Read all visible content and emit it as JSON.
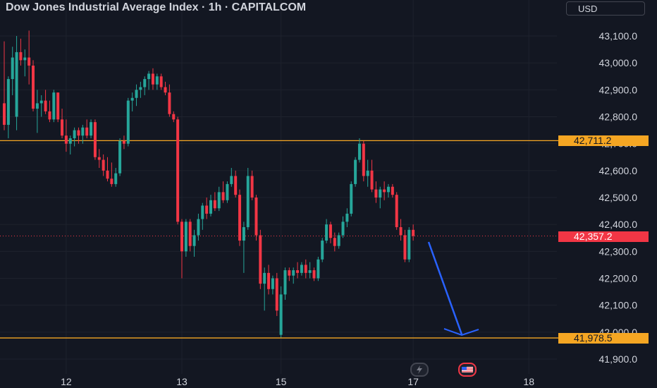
{
  "header": {
    "title": "Dow Jones Industrial Average Index · 1h · CAPITALCOM",
    "currency": "USD"
  },
  "price_tags": {
    "upper_level": "42,711.2",
    "last_price": "42,357.2",
    "lower_level": "41,978.5"
  },
  "colors": {
    "background": "#131722",
    "bull": "#26a69a",
    "bear": "#f23645",
    "level_line": "#f5a623",
    "arrow": "#2962ff",
    "grid": "#1e222d",
    "axis_text": "#d1d4dc"
  },
  "icons": [
    "lightning-event-icon",
    "us-flag-event-icon"
  ],
  "chart_data": {
    "type": "candlestick",
    "title": "Dow Jones Industrial Average Index · 1h · CAPITALCOM",
    "ylim": [
      41850,
      43170
    ],
    "y_ticks": [
      "43,100.0",
      "43,000.0",
      "42,900.0",
      "42,800.0",
      "42,700.0",
      "42,600.0",
      "42,500.0",
      "42,400.0",
      "42,300.0",
      "42,200.0",
      "42,100.0",
      "42,000.0",
      "41,900.0"
    ],
    "y_tick_values": [
      43100,
      43000,
      42900,
      42800,
      42700,
      42600,
      42500,
      42400,
      42300,
      42200,
      42100,
      42000,
      41900
    ],
    "x_ticks": [
      {
        "label": "12",
        "bar": 15
      },
      {
        "label": "13",
        "bar": 43
      },
      {
        "label": "15",
        "bar": 67
      },
      {
        "label": "17",
        "bar": 99
      },
      {
        "label": "18",
        "bar": 127
      }
    ],
    "grid": true,
    "horizontal_levels": [
      42711.2,
      41978.5
    ],
    "last_price": 42357.2,
    "candles": [
      [
        42850,
        43080,
        42750,
        42770
      ],
      [
        42770,
        42950,
        42720,
        42940
      ],
      [
        42940,
        43060,
        42880,
        43020
      ],
      [
        42800,
        43100,
        42750,
        43040
      ],
      [
        43040,
        43090,
        42990,
        43010
      ],
      [
        43010,
        43050,
        42950,
        43020
      ],
      [
        43020,
        43120,
        42920,
        42990
      ],
      [
        42990,
        43010,
        42820,
        42830
      ],
      [
        42830,
        42900,
        42740,
        42850
      ],
      [
        42850,
        42880,
        42800,
        42860
      ],
      [
        42860,
        42900,
        42810,
        42820
      ],
      [
        42820,
        42860,
        42780,
        42790
      ],
      [
        42790,
        42900,
        42780,
        42890
      ],
      [
        42890,
        42890,
        42780,
        42790
      ],
      [
        42790,
        42830,
        42720,
        42730
      ],
      [
        42730,
        42790,
        42670,
        42700
      ],
      [
        42700,
        42730,
        42660,
        42720
      ],
      [
        42720,
        42760,
        42690,
        42750
      ],
      [
        42750,
        42760,
        42700,
        42730
      ],
      [
        42730,
        42770,
        42700,
        42760
      ],
      [
        42760,
        42790,
        42720,
        42730
      ],
      [
        42730,
        42790,
        42720,
        42780
      ],
      [
        42780,
        42790,
        42640,
        42650
      ],
      [
        42650,
        42680,
        42610,
        42640
      ],
      [
        42640,
        42660,
        42580,
        42600
      ],
      [
        42600,
        42650,
        42560,
        42570
      ],
      [
        42570,
        42630,
        42540,
        42550
      ],
      [
        42550,
        42610,
        42540,
        42590
      ],
      [
        42590,
        42720,
        42580,
        42710
      ],
      [
        42710,
        42730,
        42680,
        42700
      ],
      [
        42700,
        42870,
        42690,
        42860
      ],
      [
        42860,
        42890,
        42820,
        42870
      ],
      [
        42870,
        42920,
        42840,
        42900
      ],
      [
        42900,
        42930,
        42870,
        42910
      ],
      [
        42910,
        42950,
        42880,
        42940
      ],
      [
        42940,
        42970,
        42900,
        42960
      ],
      [
        42960,
        42980,
        42900,
        42920
      ],
      [
        42920,
        42960,
        42900,
        42950
      ],
      [
        42950,
        42960,
        42900,
        42910
      ],
      [
        42910,
        42930,
        42880,
        42890
      ],
      [
        42890,
        42920,
        42800,
        42810
      ],
      [
        42810,
        42820,
        42780,
        42790
      ],
      [
        42790,
        42800,
        42400,
        42410
      ],
      [
        42410,
        42420,
        42200,
        42300
      ],
      [
        42300,
        42420,
        42280,
        42410
      ],
      [
        42410,
        42420,
        42300,
        42320
      ],
      [
        42320,
        42380,
        42280,
        42360
      ],
      [
        42360,
        42440,
        42340,
        42420
      ],
      [
        42420,
        42480,
        42380,
        42470
      ],
      [
        42470,
        42500,
        42420,
        42440
      ],
      [
        42440,
        42510,
        42430,
        42490
      ],
      [
        42490,
        42520,
        42450,
        42460
      ],
      [
        42460,
        42540,
        42450,
        42520
      ],
      [
        42520,
        42560,
        42480,
        42490
      ],
      [
        42490,
        42560,
        42480,
        42550
      ],
      [
        42550,
        42610,
        42540,
        42580
      ],
      [
        42580,
        42600,
        42500,
        42510
      ],
      [
        42510,
        42530,
        42320,
        42340
      ],
      [
        42340,
        42410,
        42220,
        42390
      ],
      [
        42390,
        42610,
        42380,
        42580
      ],
      [
        42580,
        42600,
        42490,
        42500
      ],
      [
        42500,
        42510,
        42340,
        42360
      ],
      [
        42360,
        42380,
        42160,
        42180
      ],
      [
        42180,
        42240,
        42080,
        42220
      ],
      [
        42220,
        42250,
        42140,
        42160
      ],
      [
        42160,
        42210,
        42140,
        42200
      ],
      [
        42200,
        42220,
        42060,
        42080
      ],
      [
        41990,
        42170,
        41980,
        42140
      ],
      [
        42140,
        42240,
        42120,
        42230
      ],
      [
        42230,
        42240,
        42190,
        42210
      ],
      [
        42210,
        42240,
        42180,
        42230
      ],
      [
        42230,
        42260,
        42200,
        42220
      ],
      [
        42220,
        42260,
        42210,
        42250
      ],
      [
        42250,
        42270,
        42200,
        42220
      ],
      [
        42220,
        42260,
        42200,
        42230
      ],
      [
        42230,
        42240,
        42190,
        42200
      ],
      [
        42200,
        42280,
        42190,
        42270
      ],
      [
        42270,
        42350,
        42260,
        42340
      ],
      [
        42340,
        42420,
        42330,
        42400
      ],
      [
        42400,
        42410,
        42330,
        42350
      ],
      [
        42350,
        42370,
        42300,
        42320
      ],
      [
        42320,
        42370,
        42310,
        42360
      ],
      [
        42360,
        42430,
        42350,
        42410
      ],
      [
        42410,
        42460,
        42390,
        42440
      ],
      [
        42440,
        42560,
        42430,
        42550
      ],
      [
        42550,
        42650,
        42540,
        42640
      ],
      [
        42640,
        42720,
        42630,
        42700
      ],
      [
        42700,
        42710,
        42560,
        42580
      ],
      [
        42580,
        42640,
        42540,
        42600
      ],
      [
        42600,
        42640,
        42520,
        42530
      ],
      [
        42530,
        42560,
        42480,
        42500
      ],
      [
        42500,
        42540,
        42460,
        42530
      ],
      [
        42530,
        42560,
        42490,
        42520
      ],
      [
        42520,
        42550,
        42500,
        42540
      ],
      [
        42540,
        42550,
        42500,
        42510
      ],
      [
        42510,
        42520,
        42380,
        42390
      ],
      [
        42390,
        42420,
        42340,
        42360
      ],
      [
        42360,
        42380,
        42260,
        42270
      ],
      [
        42270,
        42390,
        42260,
        42380
      ],
      [
        42380,
        42400,
        42340,
        42357.2
      ]
    ]
  }
}
